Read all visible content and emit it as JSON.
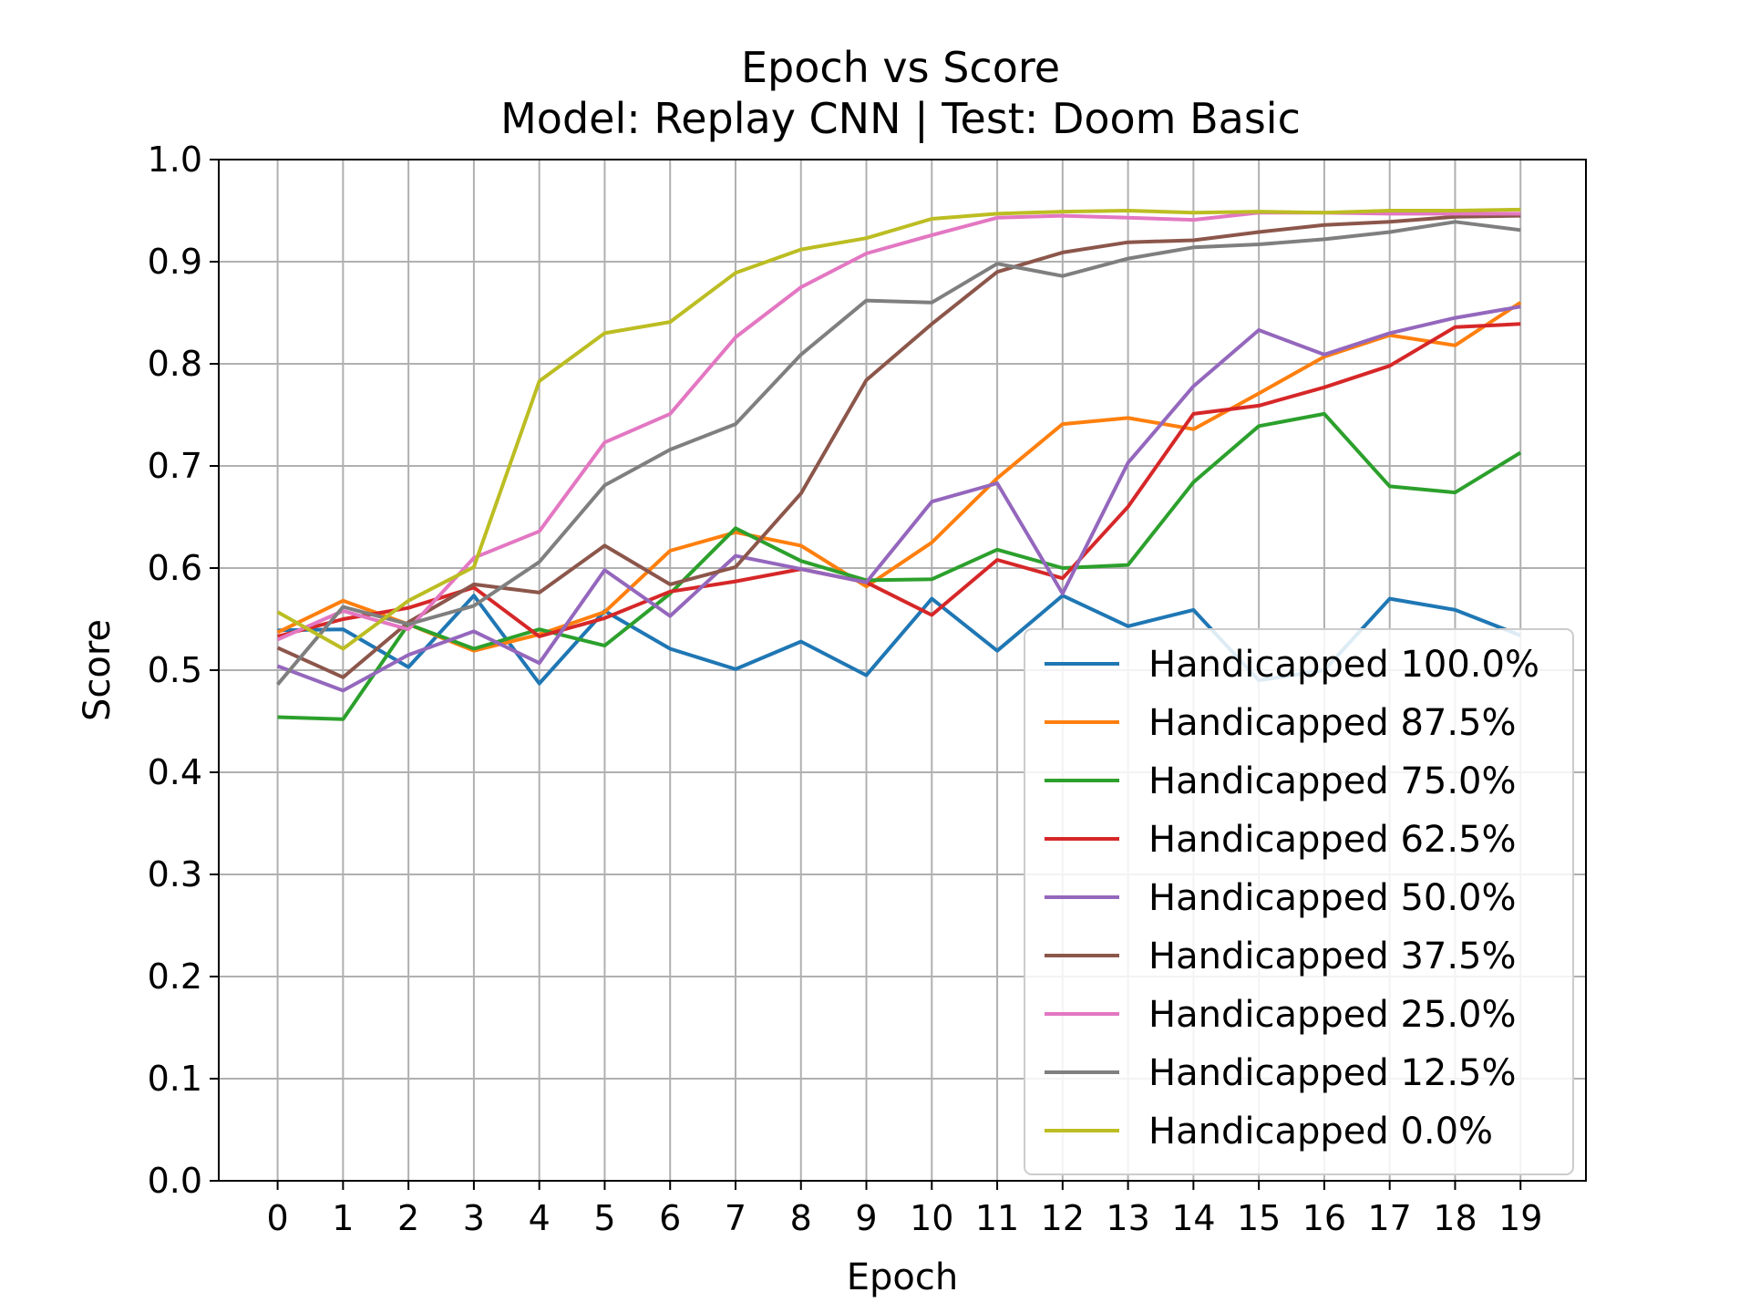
{
  "chart_data": {
    "type": "line",
    "title": "Epoch vs Score",
    "subtitle": "Model: Replay CNN | Test: Doom Basic",
    "xlabel": "Epoch",
    "ylabel": "Score",
    "xlim": [
      -0.9,
      20.0
    ],
    "ylim": [
      0.0,
      1.0
    ],
    "grid": true,
    "legend_position": "lower-right",
    "x": [
      0,
      1,
      2,
      3,
      4,
      5,
      6,
      7,
      8,
      9,
      10,
      11,
      12,
      13,
      14,
      15,
      16,
      17,
      18,
      19
    ],
    "x_ticks": [
      "0",
      "1",
      "2",
      "3",
      "4",
      "5",
      "6",
      "7",
      "8",
      "9",
      "10",
      "11",
      "12",
      "13",
      "14",
      "15",
      "16",
      "17",
      "18",
      "19"
    ],
    "y_ticks": [
      "0.0",
      "0.1",
      "0.2",
      "0.3",
      "0.4",
      "0.5",
      "0.6",
      "0.7",
      "0.8",
      "0.9",
      "1.0"
    ],
    "series": [
      {
        "name": "Handicapped 100.0%",
        "color": "#1f77b4",
        "values": [
          0.539,
          0.54,
          0.503,
          0.573,
          0.487,
          0.558,
          0.521,
          0.501,
          0.528,
          0.495,
          0.57,
          0.519,
          0.573,
          0.543,
          0.559,
          0.49,
          0.5,
          0.57,
          0.559,
          0.534
        ]
      },
      {
        "name": "Handicapped 87.5%",
        "color": "#ff7f0e",
        "values": [
          0.537,
          0.568,
          0.545,
          0.519,
          0.535,
          0.557,
          0.617,
          0.635,
          0.622,
          0.582,
          0.625,
          0.688,
          0.741,
          0.747,
          0.736,
          0.771,
          0.807,
          0.828,
          0.818,
          0.86
        ]
      },
      {
        "name": "Handicapped 75.0%",
        "color": "#2ca02c",
        "values": [
          0.454,
          0.452,
          0.545,
          0.521,
          0.54,
          0.524,
          0.575,
          0.639,
          0.607,
          0.588,
          0.589,
          0.618,
          0.6,
          0.603,
          0.684,
          0.739,
          0.751,
          0.68,
          0.674,
          0.713
        ]
      },
      {
        "name": "Handicapped 62.5%",
        "color": "#d62728",
        "values": [
          0.533,
          0.55,
          0.561,
          0.581,
          0.533,
          0.551,
          0.577,
          0.587,
          0.599,
          0.586,
          0.554,
          0.608,
          0.59,
          0.66,
          0.751,
          0.759,
          0.777,
          0.798,
          0.836,
          0.839
        ]
      },
      {
        "name": "Handicapped 50.0%",
        "color": "#9467bd",
        "values": [
          0.504,
          0.48,
          0.515,
          0.538,
          0.507,
          0.598,
          0.553,
          0.612,
          0.599,
          0.586,
          0.665,
          0.683,
          0.575,
          0.703,
          0.778,
          0.833,
          0.809,
          0.83,
          0.845,
          0.856
        ]
      },
      {
        "name": "Handicapped 37.5%",
        "color": "#8c564b",
        "values": [
          0.522,
          0.493,
          0.547,
          0.584,
          0.576,
          0.622,
          0.584,
          0.601,
          0.673,
          0.784,
          0.839,
          0.89,
          0.909,
          0.919,
          0.921,
          0.929,
          0.936,
          0.939,
          0.944,
          0.945
        ]
      },
      {
        "name": "Handicapped 25.0%",
        "color": "#e377c2",
        "values": [
          0.53,
          0.558,
          0.54,
          0.61,
          0.636,
          0.723,
          0.751,
          0.826,
          0.875,
          0.908,
          0.926,
          0.943,
          0.945,
          0.943,
          0.941,
          0.948,
          0.948,
          0.947,
          0.947,
          0.947
        ]
      },
      {
        "name": "Handicapped 12.5%",
        "color": "#7f7f7f",
        "values": [
          0.486,
          0.562,
          0.545,
          0.563,
          0.606,
          0.681,
          0.716,
          0.741,
          0.809,
          0.862,
          0.86,
          0.898,
          0.886,
          0.903,
          0.914,
          0.917,
          0.922,
          0.929,
          0.939,
          0.931
        ]
      },
      {
        "name": "Handicapped 0.0%",
        "color": "#bcbd22",
        "values": [
          0.557,
          0.521,
          0.568,
          0.601,
          0.783,
          0.83,
          0.841,
          0.889,
          0.912,
          0.923,
          0.942,
          0.947,
          0.949,
          0.95,
          0.948,
          0.949,
          0.948,
          0.95,
          0.95,
          0.951
        ]
      }
    ]
  }
}
